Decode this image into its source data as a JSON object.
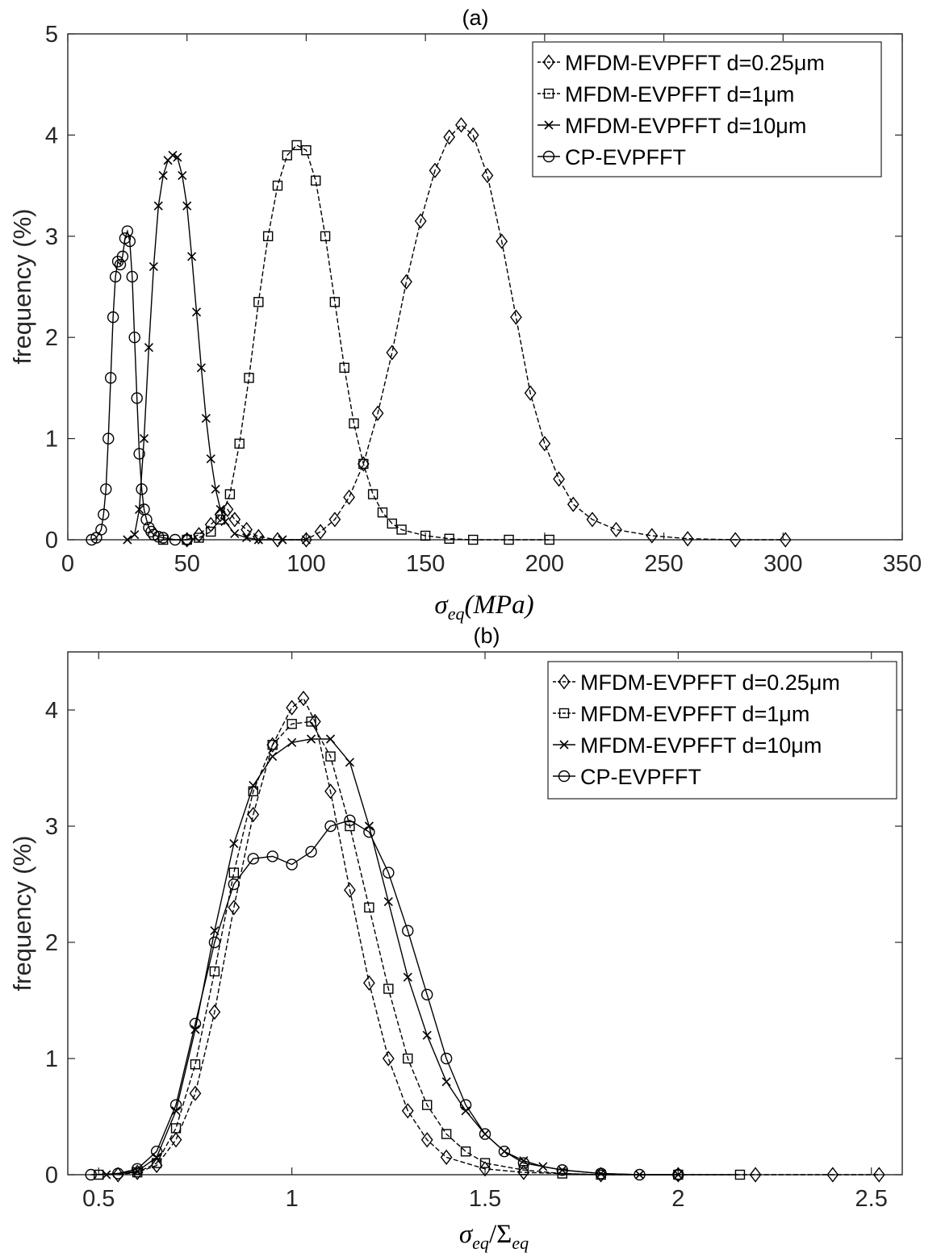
{
  "chart_data": [
    {
      "type": "line",
      "title": "(a)",
      "xlabel_symbol": "σ",
      "xlabel_sub": "eq",
      "xlabel_tail": "(MPa)",
      "ylabel": "frequency (%)",
      "xlim": [
        0,
        350
      ],
      "ylim": [
        0,
        5
      ],
      "xticks": [
        "0",
        "50",
        "100",
        "150",
        "200",
        "250",
        "300",
        "350"
      ],
      "yticks": [
        "0",
        "1",
        "2",
        "3",
        "4",
        "5"
      ],
      "grid": false,
      "legend_position": "top-right",
      "series": [
        {
          "name": "MFDM-EVPFFT d=0.25μm",
          "marker": "diamond",
          "dash": "6 3",
          "x": [
            50,
            55,
            60,
            64,
            67,
            70,
            75,
            80,
            88,
            100,
            106,
            112,
            118,
            124,
            130,
            136,
            142,
            148,
            154,
            160,
            165,
            170,
            176,
            182,
            188,
            194,
            200,
            206,
            212,
            220,
            230,
            245,
            260,
            280,
            301
          ],
          "y": [
            0,
            0.05,
            0.15,
            0.25,
            0.3,
            0.2,
            0.1,
            0.03,
            0,
            0,
            0.08,
            0.2,
            0.42,
            0.75,
            1.25,
            1.85,
            2.55,
            3.15,
            3.65,
            3.98,
            4.1,
            4.0,
            3.6,
            2.95,
            2.2,
            1.45,
            0.95,
            0.6,
            0.35,
            0.2,
            0.1,
            0.04,
            0.01,
            0,
            0
          ]
        },
        {
          "name": "MFDM-EVPFFT d=1μm",
          "marker": "square",
          "dash": "6 3",
          "x": [
            40,
            50,
            55,
            60,
            64,
            68,
            72,
            76,
            80,
            84,
            88,
            92,
            96,
            100,
            104,
            108,
            112,
            116,
            120,
            124,
            128,
            132,
            136,
            140,
            150,
            160,
            170,
            185,
            202
          ],
          "y": [
            0,
            0,
            0.02,
            0.08,
            0.2,
            0.45,
            0.95,
            1.6,
            2.35,
            3.0,
            3.5,
            3.8,
            3.9,
            3.85,
            3.55,
            3.0,
            2.35,
            1.7,
            1.15,
            0.75,
            0.45,
            0.27,
            0.16,
            0.1,
            0.04,
            0.01,
            0,
            0,
            0
          ]
        },
        {
          "name": "MFDM-EVPFFT d=10μm",
          "marker": "cross",
          "dash": "",
          "x": [
            25,
            28,
            30,
            32,
            34,
            36,
            38,
            40,
            42,
            44,
            46,
            48,
            50,
            52,
            54,
            56,
            58,
            60,
            62,
            64,
            66,
            70,
            75,
            80,
            90,
            100
          ],
          "y": [
            0,
            0.05,
            0.3,
            1.0,
            1.9,
            2.7,
            3.3,
            3.6,
            3.75,
            3.8,
            3.78,
            3.6,
            3.3,
            2.8,
            2.25,
            1.7,
            1.2,
            0.8,
            0.5,
            0.3,
            0.18,
            0.06,
            0.02,
            0,
            0,
            0
          ]
        },
        {
          "name": "CP-EVPFFT",
          "marker": "circle",
          "dash": "",
          "x": [
            10,
            12,
            14,
            15,
            16,
            17,
            18,
            19,
            20,
            21,
            22,
            23,
            24,
            25,
            26,
            27,
            28,
            29,
            30,
            31,
            32,
            33,
            34,
            35,
            36,
            38,
            40,
            45,
            50
          ],
          "y": [
            0,
            0.02,
            0.1,
            0.25,
            0.5,
            1.0,
            1.6,
            2.2,
            2.6,
            2.75,
            2.72,
            2.8,
            2.98,
            3.05,
            2.95,
            2.6,
            2.0,
            1.4,
            0.85,
            0.5,
            0.3,
            0.2,
            0.12,
            0.08,
            0.05,
            0.03,
            0.02,
            0,
            0
          ]
        }
      ]
    },
    {
      "type": "line",
      "title": "(b)",
      "xlabel_num": "σ",
      "xlabel_num_sub": "eq",
      "xlabel_sep": "/",
      "xlabel_den": "Σ",
      "xlabel_den_sub": "eq",
      "ylabel": "frequency (%)",
      "xlim": [
        0.42,
        2.58
      ],
      "ylim": [
        0,
        4.5
      ],
      "xticks": [
        "0.5",
        "1",
        "1.5",
        "2",
        "2.5"
      ],
      "xtick_values": [
        0.5,
        1,
        1.5,
        2,
        2.5
      ],
      "yticks": [
        "0",
        "1",
        "2",
        "3",
        "4"
      ],
      "grid": false,
      "legend_position": "top-right",
      "series": [
        {
          "name": "MFDM-EVPFFT d=0.25μm",
          "marker": "diamond",
          "dash": "6 3",
          "x": [
            0.55,
            0.6,
            0.65,
            0.7,
            0.75,
            0.8,
            0.85,
            0.9,
            0.95,
            1.0,
            1.03,
            1.06,
            1.1,
            1.15,
            1.2,
            1.25,
            1.3,
            1.35,
            1.4,
            1.5,
            1.6,
            1.8,
            2.0,
            2.2,
            2.4,
            2.52
          ],
          "y": [
            0,
            0.02,
            0.08,
            0.3,
            0.7,
            1.4,
            2.3,
            3.1,
            3.7,
            4.02,
            4.1,
            3.9,
            3.3,
            2.45,
            1.65,
            1.0,
            0.55,
            0.3,
            0.15,
            0.05,
            0.02,
            0,
            0,
            0,
            0,
            0
          ]
        },
        {
          "name": "MFDM-EVPFFT d=1μm",
          "marker": "square",
          "dash": "6 3",
          "x": [
            0.5,
            0.6,
            0.65,
            0.7,
            0.75,
            0.8,
            0.85,
            0.9,
            0.95,
            1.0,
            1.05,
            1.1,
            1.15,
            1.2,
            1.25,
            1.3,
            1.35,
            1.4,
            1.45,
            1.5,
            1.6,
            1.7,
            1.8,
            2.0,
            2.16
          ],
          "y": [
            0,
            0.02,
            0.1,
            0.4,
            0.95,
            1.75,
            2.6,
            3.3,
            3.7,
            3.88,
            3.9,
            3.6,
            3.0,
            2.3,
            1.6,
            1.0,
            0.6,
            0.35,
            0.2,
            0.1,
            0.04,
            0.01,
            0,
            0,
            0
          ]
        },
        {
          "name": "MFDM-EVPFFT d=10μm",
          "marker": "cross",
          "dash": "",
          "x": [
            0.52,
            0.6,
            0.65,
            0.7,
            0.75,
            0.8,
            0.85,
            0.9,
            0.95,
            1.0,
            1.05,
            1.1,
            1.15,
            1.2,
            1.25,
            1.3,
            1.35,
            1.4,
            1.45,
            1.5,
            1.55,
            1.6,
            1.65,
            1.7,
            1.8,
            1.9,
            2.0
          ],
          "y": [
            0,
            0.03,
            0.15,
            0.55,
            1.25,
            2.1,
            2.85,
            3.35,
            3.6,
            3.72,
            3.75,
            3.75,
            3.55,
            3.0,
            2.35,
            1.7,
            1.2,
            0.8,
            0.55,
            0.35,
            0.2,
            0.12,
            0.07,
            0.04,
            0.01,
            0,
            0
          ]
        },
        {
          "name": "CP-EVPFFT",
          "marker": "circle",
          "dash": "",
          "x": [
            0.48,
            0.55,
            0.6,
            0.65,
            0.7,
            0.75,
            0.8,
            0.85,
            0.9,
            0.95,
            1.0,
            1.05,
            1.1,
            1.15,
            1.2,
            1.25,
            1.3,
            1.35,
            1.4,
            1.45,
            1.5,
            1.55,
            1.6,
            1.7,
            1.8,
            1.9,
            2.0
          ],
          "y": [
            0,
            0.01,
            0.05,
            0.2,
            0.6,
            1.3,
            2.0,
            2.5,
            2.72,
            2.74,
            2.67,
            2.78,
            3.0,
            3.05,
            2.95,
            2.6,
            2.1,
            1.55,
            1.0,
            0.6,
            0.35,
            0.2,
            0.1,
            0.04,
            0.01,
            0,
            0
          ]
        }
      ]
    }
  ]
}
